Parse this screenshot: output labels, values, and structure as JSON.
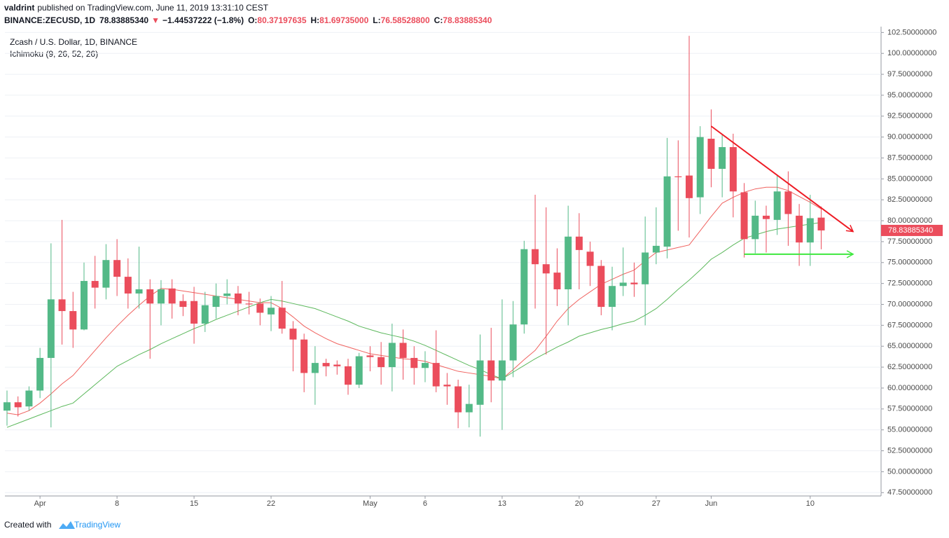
{
  "header": {
    "author": "valdrint",
    "published": "published on TradingView.com, June 11, 2019 13:31:10 CEST",
    "symbol": "BINANCE:ZECUSD, 1D",
    "last": "78.83885340",
    "change": "−1.44537222 (−1.8%)",
    "ohlc": [
      {
        "label": "O:",
        "value": "80.37197635"
      },
      {
        "label": "H:",
        "value": "81.69735000"
      },
      {
        "label": "L:",
        "value": "76.58528800"
      },
      {
        "label": "C:",
        "value": "78.83885340"
      }
    ]
  },
  "legend": {
    "title": "Zcash / U.S. Dollar, 1D, BINANCE",
    "indicator": "Ichimoku (9, 26, 52, 26)"
  },
  "footer": {
    "created": "Created with",
    "brand": "TradingView"
  },
  "chart_data": {
    "type": "candlestick",
    "up_color": "#53b987",
    "down_color": "#eb4d5c",
    "categories": [
      null,
      null,
      null,
      "Apr",
      null,
      null,
      null,
      null,
      null,
      null,
      "8",
      null,
      null,
      null,
      null,
      null,
      null,
      "15",
      null,
      null,
      null,
      null,
      null,
      null,
      "22",
      null,
      null,
      null,
      null,
      null,
      null,
      null,
      null,
      "May",
      null,
      null,
      null,
      null,
      "6",
      null,
      null,
      null,
      null,
      null,
      null,
      "13",
      null,
      null,
      null,
      null,
      null,
      null,
      "20",
      null,
      null,
      null,
      null,
      null,
      null,
      "27",
      null,
      null,
      null,
      null,
      "Jun",
      null,
      null,
      null,
      null,
      null,
      null,
      null,
      null,
      "10",
      null
    ],
    "open": [
      57.3,
      58.3,
      57.8,
      59.7,
      63.6,
      70.6,
      69.2,
      67.0,
      72.8,
      72.0,
      75.3,
      73.3,
      71.3,
      71.8,
      70.1,
      71.9,
      70.4,
      70.4,
      67.7,
      69.7,
      71.0,
      71.3,
      70.1,
      70.1,
      68.8,
      69.6,
      67.1,
      65.8,
      61.8,
      63.0,
      62.8,
      62.6,
      60.4,
      63.9,
      63.7,
      62.5,
      65.4,
      63.6,
      62.4,
      63.0,
      60.4,
      60.2,
      57.1,
      58.0,
      63.3,
      60.9,
      63.3,
      67.6,
      76.6,
      74.8,
      73.8,
      71.8,
      78.1,
      76.3,
      74.6,
      69.7,
      72.2,
      72.6,
      72.4,
      76.2,
      76.9,
      85.3,
      85.4,
      82.8,
      89.8,
      86.2,
      88.8,
      83.4,
      77.8,
      80.6,
      80.1,
      83.5,
      80.6,
      77.4,
      80.37197635
    ],
    "high": [
      59.7,
      59.0,
      60.2,
      64.8,
      77.3,
      80.1,
      71.5,
      75.0,
      75.8,
      77.2,
      77.8,
      75.5,
      76.9,
      73.0,
      72.9,
      73.0,
      71.2,
      72.1,
      71.5,
      72.5,
      73.0,
      72.2,
      71.5,
      70.7,
      71.0,
      72.8,
      68.0,
      66.5,
      65.0,
      63.5,
      63.3,
      63.5,
      64.2,
      65.0,
      65.5,
      67.7,
      67.0,
      65.0,
      64.4,
      66.9,
      61.8,
      61.0,
      60.4,
      66.4,
      67.2,
      70.6,
      70.4,
      77.6,
      83.1,
      81.6,
      76.7,
      81.8,
      80.9,
      77.5,
      75.3,
      74.5,
      76.8,
      75.0,
      80.5,
      81.6,
      89.9,
      89.6,
      102.1,
      91.3,
      93.3,
      90.3,
      90.4,
      84.5,
      82.4,
      81.8,
      85.5,
      85.9,
      82.0,
      83.1,
      81.69735
    ],
    "low": [
      55.5,
      56.6,
      57.3,
      58.8,
      55.3,
      65.2,
      64.8,
      66.9,
      69.5,
      70.6,
      71.0,
      69.5,
      69.5,
      63.5,
      67.5,
      68.3,
      68.6,
      65.3,
      66.7,
      68.3,
      70.0,
      68.7,
      68.8,
      67.5,
      66.8,
      66.5,
      62.0,
      59.5,
      58.0,
      61.4,
      61.6,
      59.2,
      60.0,
      62.0,
      60.4,
      59.6,
      61.0,
      60.4,
      60.7,
      59.5,
      58.0,
      55.2,
      55.3,
      54.2,
      58.3,
      55.0,
      61.3,
      66.5,
      69.5,
      64.0,
      69.8,
      67.5,
      71.8,
      72.2,
      68.7,
      66.9,
      71.0,
      70.9,
      67.5,
      74.8,
      75.5,
      78.8,
      78.0,
      80.8,
      84.0,
      82.8,
      80.4,
      75.6,
      76.1,
      76.2,
      78.3,
      77.0,
      74.6,
      74.6,
      76.585288
    ],
    "close": [
      58.3,
      57.7,
      59.7,
      63.6,
      70.6,
      69.2,
      67.0,
      72.8,
      72.0,
      75.3,
      73.3,
      71.3,
      71.8,
      70.1,
      71.8,
      70.1,
      69.7,
      67.7,
      69.9,
      71.0,
      71.3,
      70.1,
      70.0,
      69.0,
      69.6,
      67.1,
      65.8,
      61.8,
      63.0,
      62.6,
      62.6,
      60.4,
      63.8,
      63.7,
      62.5,
      65.4,
      63.6,
      62.4,
      63.0,
      60.2,
      60.2,
      57.1,
      58.1,
      63.3,
      60.9,
      63.3,
      67.6,
      76.6,
      74.8,
      73.7,
      71.8,
      78.1,
      76.5,
      74.6,
      69.7,
      72.2,
      72.6,
      72.4,
      76.2,
      77.0,
      85.3,
      85.2,
      82.7,
      90.0,
      86.2,
      88.8,
      83.5,
      77.8,
      80.6,
      80.2,
      83.5,
      80.8,
      77.4,
      80.3,
      78.8388534
    ],
    "lines": [
      {
        "color": "#f0625f",
        "values": [
          57.0,
          56.8,
          57.3,
          58.2,
          59.3,
          60.5,
          61.5,
          63.0,
          64.5,
          66.0,
          67.4,
          68.7,
          69.9,
          71.0,
          71.9,
          71.8,
          71.6,
          71.4,
          71.2,
          71.0,
          70.8,
          70.6,
          70.4,
          70.2,
          70.2,
          69.5,
          68.5,
          67.4,
          66.6,
          65.9,
          65.3,
          64.9,
          64.5,
          64.1,
          63.9,
          63.7,
          63.5,
          63.4,
          63.2,
          62.8,
          62.4,
          62.0,
          61.8,
          61.6,
          61.4,
          61.1,
          62.2,
          63.4,
          64.5,
          66.2,
          68.0,
          69.5,
          70.6,
          71.5,
          72.4,
          73.0,
          73.6,
          74.1,
          75.2,
          76.2,
          76.5,
          76.8,
          77.1,
          78.8,
          80.5,
          82.1,
          82.8,
          83.4,
          83.8,
          84.0,
          84.0,
          83.6,
          82.9,
          82.2,
          81.4
        ]
      },
      {
        "color": "#5cb85c",
        "values": [
          55.3,
          55.8,
          56.3,
          56.8,
          57.3,
          57.8,
          58.2,
          59.3,
          60.4,
          61.5,
          62.6,
          63.3,
          64.0,
          64.6,
          65.3,
          65.9,
          66.5,
          67.1,
          67.6,
          68.2,
          68.7,
          69.2,
          69.7,
          70.2,
          70.6,
          70.4,
          70.1,
          69.8,
          69.5,
          69.0,
          68.5,
          68.0,
          67.4,
          67.0,
          66.6,
          66.3,
          66.0,
          65.6,
          65.1,
          64.5,
          63.9,
          63.3,
          62.7,
          62.2,
          61.6,
          61.1,
          61.9,
          62.7,
          63.5,
          64.2,
          64.9,
          65.5,
          66.2,
          66.6,
          67.0,
          67.3,
          67.7,
          68.0,
          68.7,
          69.5,
          70.6,
          71.8,
          72.9,
          74.1,
          75.4,
          76.2,
          77.1,
          77.9,
          78.3,
          78.7,
          79.0,
          79.2,
          79.4,
          79.6,
          79.8
        ]
      }
    ],
    "trend_lines": [
      {
        "color": "#ee1c25",
        "x": [
          64,
          76.9
        ],
        "y": [
          91.3,
          78.7
        ]
      },
      {
        "color": "#3ee83e",
        "x": [
          67,
          76.9
        ],
        "y": [
          76.0,
          76.0
        ]
      }
    ],
    "ylim": [
      47.1,
      103.2
    ],
    "yticks": [
      {
        "value": 47.5,
        "label": "47.50000000"
      },
      {
        "value": 50,
        "label": "50.00000000"
      },
      {
        "value": 52.5,
        "label": "52.50000000"
      },
      {
        "value": 55,
        "label": "55.00000000"
      },
      {
        "value": 57.5,
        "label": "57.50000000"
      },
      {
        "value": 60,
        "label": "60.00000000"
      },
      {
        "value": 62.5,
        "label": "62.50000000"
      },
      {
        "value": 65,
        "label": "65.00000000"
      },
      {
        "value": 67.5,
        "label": "67.50000000"
      },
      {
        "value": 70,
        "label": "70.00000000"
      },
      {
        "value": 72.5,
        "label": "72.50000000"
      },
      {
        "value": 75,
        "label": "75.00000000"
      },
      {
        "value": 77.5,
        "label": "77.50000000"
      },
      {
        "value": 80,
        "label": "80.00000000"
      },
      {
        "value": 82.5,
        "label": "82.50000000"
      },
      {
        "value": 85,
        "label": "85.00000000"
      },
      {
        "value": 87.5,
        "label": "87.50000000"
      },
      {
        "value": 90,
        "label": "90.00000000"
      },
      {
        "value": 92.5,
        "label": "92.50000000"
      },
      {
        "value": 95,
        "label": "95.00000000"
      },
      {
        "value": 97.5,
        "label": "97.50000000"
      },
      {
        "value": 100,
        "label": "100.00000000"
      },
      {
        "value": 102.5,
        "label": "102.50000000"
      }
    ],
    "grid": true
  }
}
